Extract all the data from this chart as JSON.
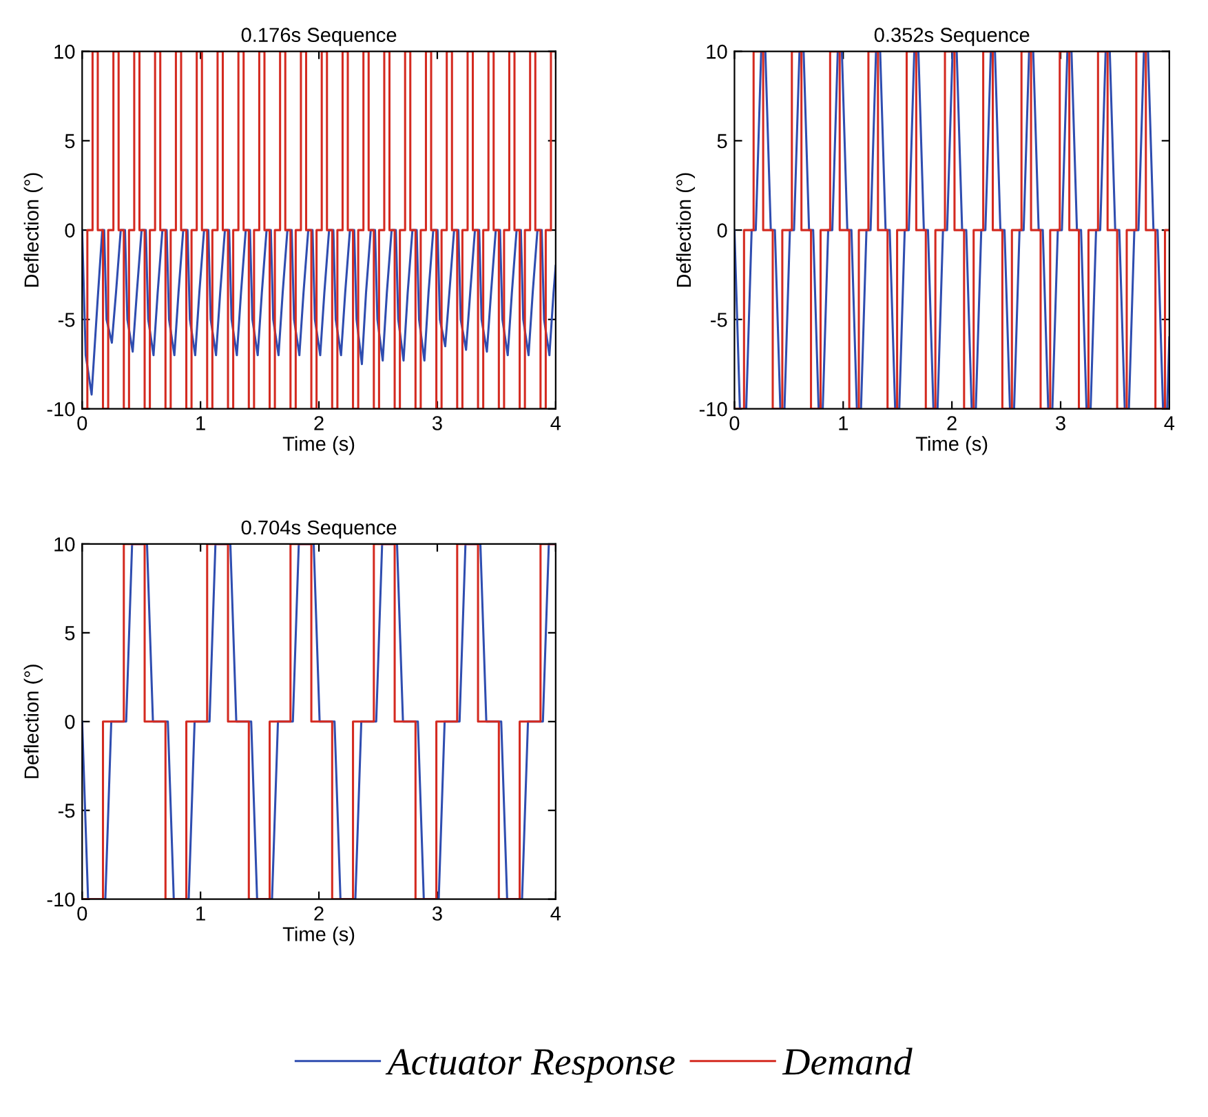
{
  "chart_data": [
    {
      "type": "line",
      "title": "0.176s Sequence",
      "xlabel": "Time (s)",
      "ylabel": "Deflection (°)",
      "xlim": [
        0,
        4
      ],
      "ylim": [
        -10,
        10
      ],
      "xticks": [
        0,
        1,
        2,
        3,
        4
      ],
      "yticks": [
        -10,
        -5,
        0,
        5,
        10
      ],
      "legend": "bottom",
      "series": [
        {
          "name": "Actuator Response",
          "type": "line",
          "color": "#2f4db0",
          "x": [
            0,
            0.03,
            0.08,
            0.13,
            0.17,
            0.186,
            0.206,
            0.251,
            0.286,
            0.326,
            0.362,
            0.382,
            0.427,
            0.462,
            0.502,
            0.538,
            0.558,
            0.603,
            0.638,
            0.678,
            0.714,
            0.734,
            0.779,
            0.814,
            0.854,
            0.89,
            0.91,
            0.955,
            0.99,
            1.03,
            1.066,
            1.086,
            1.131,
            1.166,
            1.206,
            1.242,
            1.262,
            1.307,
            1.342,
            1.382,
            1.418,
            1.438,
            1.483,
            1.518,
            1.558,
            1.594,
            1.614,
            1.659,
            1.694,
            1.734,
            1.77,
            1.79,
            1.835,
            1.87,
            1.91,
            1.946,
            1.966,
            2.011,
            2.046,
            2.086,
            2.122,
            2.142,
            2.187,
            2.222,
            2.262,
            2.298,
            2.318,
            2.363,
            2.398,
            2.438,
            2.474,
            2.494,
            2.539,
            2.574,
            2.614,
            2.65,
            2.67,
            2.715,
            2.75,
            2.79,
            2.826,
            2.846,
            2.891,
            2.926,
            2.966,
            3.002,
            3.022,
            3.067,
            3.102,
            3.142,
            3.178,
            3.198,
            3.243,
            3.278,
            3.318,
            3.354,
            3.374,
            3.419,
            3.454,
            3.494,
            3.53,
            3.55,
            3.595,
            3.63,
            3.67,
            3.706,
            3.726,
            3.771,
            3.806,
            3.846,
            3.882,
            3.902,
            3.947,
            3.982,
            4.0
          ],
          "values": [
            0,
            -7,
            -9.2,
            -4,
            0,
            0,
            -5,
            -6.3,
            -3.5,
            0,
            0,
            -5,
            -6.8,
            -3.5,
            0,
            0,
            -5,
            -7,
            -3.5,
            0,
            0,
            -5,
            -7,
            -3.5,
            0,
            0,
            -5,
            -7,
            -3.5,
            0,
            0,
            -5,
            -7,
            -3.5,
            0,
            0,
            -5,
            -7,
            -3.5,
            0,
            0,
            -5,
            -7,
            -3.5,
            0,
            0,
            -5,
            -7,
            -3.5,
            0,
            0,
            -5,
            -7,
            -3.5,
            0,
            0,
            -5,
            -7,
            -3.5,
            0,
            0,
            -5,
            -7,
            -3.5,
            0,
            0,
            -5,
            -7.5,
            -3.5,
            0,
            0,
            -5,
            -7.3,
            -3.5,
            0,
            0,
            -5,
            -7.3,
            -3.5,
            0,
            0,
            -5,
            -7.3,
            -3.5,
            0,
            0,
            -5,
            -6.5,
            -3.5,
            0,
            0,
            -5,
            -6.7,
            -3.5,
            0,
            0,
            -5,
            -6.8,
            -3.5,
            0,
            0,
            -5,
            -7,
            -3.5,
            0,
            0,
            -5,
            -7,
            -3.5,
            0,
            0,
            -5,
            -7,
            -3.5,
            -2
          ]
        },
        {
          "name": "Demand",
          "type": "step",
          "color": "#d42a20",
          "x": [
            0,
            0.044,
            0.088,
            0.132,
            0.176,
            0.22,
            0.264,
            0.308,
            0.352,
            0.396,
            0.44,
            0.484,
            0.528,
            0.572,
            0.616,
            0.66,
            0.704,
            0.748,
            0.792,
            0.836,
            0.88,
            0.924,
            0.968,
            1.012,
            1.056,
            1.1,
            1.144,
            1.188,
            1.232,
            1.276,
            1.32,
            1.364,
            1.408,
            1.452,
            1.496,
            1.54,
            1.584,
            1.628,
            1.672,
            1.716,
            1.76,
            1.804,
            1.848,
            1.892,
            1.936,
            1.98,
            2.024,
            2.068,
            2.112,
            2.156,
            2.2,
            2.244,
            2.288,
            2.332,
            2.376,
            2.42,
            2.464,
            2.508,
            2.552,
            2.596,
            2.64,
            2.684,
            2.728,
            2.772,
            2.816,
            2.86,
            2.904,
            2.948,
            2.992,
            3.036,
            3.08,
            3.124,
            3.168,
            3.212,
            3.256,
            3.3,
            3.344,
            3.388,
            3.432,
            3.476,
            3.52,
            3.564,
            3.608,
            3.652,
            3.696,
            3.74,
            3.784,
            3.828,
            3.872,
            3.916,
            3.96,
            4.0
          ],
          "values": [
            -10,
            0,
            10,
            0,
            -10,
            0,
            10,
            0,
            -10,
            0,
            10,
            0,
            -10,
            0,
            10,
            0,
            -10,
            0,
            10,
            0,
            -10,
            0,
            10,
            0,
            -10,
            0,
            10,
            0,
            -10,
            0,
            10,
            0,
            -10,
            0,
            10,
            0,
            -10,
            0,
            10,
            0,
            -10,
            0,
            10,
            0,
            -10,
            0,
            10,
            0,
            -10,
            0,
            10,
            0,
            -10,
            0,
            10,
            0,
            -10,
            0,
            10,
            0,
            -10,
            0,
            10,
            0,
            -10,
            0,
            10,
            0,
            -10,
            0,
            10,
            0,
            -10,
            0,
            10,
            0,
            -10,
            0,
            10,
            0,
            -10,
            0,
            10,
            0,
            -10,
            0,
            10,
            0,
            -10,
            0,
            10,
            10
          ]
        }
      ]
    },
    {
      "type": "line",
      "title": "0.352s Sequence",
      "xlabel": "Time (s)",
      "ylabel": "Deflection (°)",
      "xlim": [
        0,
        4
      ],
      "ylim": [
        -10,
        10
      ],
      "xticks": [
        0,
        1,
        2,
        3,
        4
      ],
      "yticks": [
        -10,
        -5,
        0,
        5,
        10
      ],
      "series": [
        {
          "type": "line",
          "color": "#2f4db0",
          "x": [
            0,
            0.05,
            0.108,
            0.158,
            0.196,
            0.246,
            0.284,
            0.334,
            0.372,
            0.422,
            0.46,
            0.51,
            0.548,
            0.598,
            0.636,
            0.686,
            0.724,
            0.774,
            0.812,
            0.862,
            0.9,
            0.95,
            0.988,
            1.038,
            1.076,
            1.126,
            1.164,
            1.214,
            1.252,
            1.302,
            1.34,
            1.39,
            1.428,
            1.478,
            1.516,
            1.566,
            1.604,
            1.654,
            1.692,
            1.742,
            1.78,
            1.83,
            1.868,
            1.918,
            1.956,
            2.006,
            2.044,
            2.094,
            2.132,
            2.182,
            2.22,
            2.27,
            2.308,
            2.358,
            2.396,
            2.446,
            2.484,
            2.534,
            2.572,
            2.622,
            2.66,
            2.71,
            2.748,
            2.798,
            2.836,
            2.886,
            2.924,
            2.974,
            3.012,
            3.062,
            3.1,
            3.15,
            3.188,
            3.238,
            3.276,
            3.326,
            3.364,
            3.414,
            3.452,
            3.502,
            3.54,
            3.59,
            3.628,
            3.678,
            3.716,
            3.766,
            3.804,
            3.854,
            3.892,
            3.942,
            3.98,
            4.0
          ],
          "values": [
            0,
            -10,
            -10,
            0,
            0,
            10,
            10,
            0,
            0,
            -10,
            -10,
            0,
            0,
            10,
            10,
            0,
            0,
            -10,
            -10,
            0,
            0,
            10,
            10,
            0,
            0,
            -10,
            -10,
            0,
            0,
            10,
            10,
            0,
            0,
            -10,
            -10,
            0,
            0,
            10,
            10,
            0,
            0,
            -10,
            -10,
            0,
            0,
            10,
            10,
            0,
            0,
            -10,
            -10,
            0,
            0,
            10,
            10,
            0,
            0,
            -10,
            -10,
            0,
            0,
            10,
            10,
            0,
            0,
            -10,
            -10,
            0,
            0,
            10,
            10,
            0,
            0,
            -10,
            -10,
            0,
            0,
            10,
            10,
            0,
            0,
            -10,
            -10,
            0,
            0,
            10,
            10,
            0,
            0,
            -10,
            -10,
            -6
          ]
        },
        {
          "type": "step",
          "color": "#d42a20",
          "x": [
            0,
            0.088,
            0.176,
            0.264,
            0.352,
            0.44,
            0.528,
            0.616,
            0.704,
            0.792,
            0.88,
            0.968,
            1.056,
            1.144,
            1.232,
            1.32,
            1.408,
            1.496,
            1.584,
            1.672,
            1.76,
            1.848,
            1.936,
            2.024,
            2.112,
            2.2,
            2.288,
            2.376,
            2.464,
            2.552,
            2.64,
            2.728,
            2.816,
            2.904,
            2.992,
            3.08,
            3.168,
            3.256,
            3.344,
            3.432,
            3.52,
            3.608,
            3.696,
            3.784,
            3.872,
            3.96,
            4.0
          ],
          "values": [
            -10,
            0,
            10,
            0,
            -10,
            0,
            10,
            0,
            -10,
            0,
            10,
            0,
            -10,
            0,
            10,
            0,
            -10,
            0,
            10,
            0,
            -10,
            0,
            10,
            0,
            -10,
            0,
            10,
            0,
            -10,
            0,
            10,
            0,
            -10,
            0,
            10,
            0,
            -10,
            0,
            10,
            0,
            -10,
            0,
            10,
            0,
            -10,
            0,
            0
          ]
        }
      ]
    },
    {
      "type": "line",
      "title": "0.704s Sequence",
      "xlabel": "Time (s)",
      "ylabel": "Deflection (°)",
      "xlim": [
        0,
        4
      ],
      "ylim": [
        -10,
        10
      ],
      "xticks": [
        0,
        1,
        2,
        3,
        4
      ],
      "yticks": [
        -10,
        -5,
        0,
        5,
        10
      ],
      "series": [
        {
          "type": "line",
          "color": "#2f4db0",
          "x": [
            0,
            0.05,
            0.196,
            0.246,
            0.372,
            0.422,
            0.548,
            0.598,
            0.724,
            0.774,
            0.9,
            0.95,
            1.076,
            1.126,
            1.252,
            1.302,
            1.428,
            1.478,
            1.604,
            1.654,
            1.78,
            1.83,
            1.956,
            2.006,
            2.132,
            2.182,
            2.308,
            2.358,
            2.484,
            2.534,
            2.66,
            2.71,
            2.836,
            2.886,
            3.012,
            3.062,
            3.188,
            3.238,
            3.364,
            3.414,
            3.54,
            3.59,
            3.716,
            3.766,
            3.892,
            3.942,
            4.0
          ],
          "values": [
            0,
            -10,
            -10,
            0,
            0,
            10,
            10,
            0,
            0,
            -10,
            -10,
            0,
            0,
            10,
            10,
            0,
            0,
            -10,
            -10,
            0,
            0,
            10,
            10,
            0,
            0,
            -10,
            -10,
            0,
            0,
            10,
            10,
            0,
            0,
            -10,
            -10,
            0,
            0,
            10,
            10,
            0,
            0,
            -10,
            -10,
            0,
            0,
            10,
            10
          ]
        },
        {
          "type": "step",
          "color": "#d42a20",
          "x": [
            0,
            0.176,
            0.352,
            0.528,
            0.704,
            0.88,
            1.056,
            1.232,
            1.408,
            1.584,
            1.76,
            1.936,
            2.112,
            2.288,
            2.464,
            2.64,
            2.816,
            2.992,
            3.168,
            3.344,
            3.52,
            3.696,
            3.872,
            4.0
          ],
          "values": [
            -10,
            0,
            10,
            0,
            -10,
            0,
            10,
            0,
            -10,
            0,
            10,
            0,
            -10,
            0,
            10,
            0,
            -10,
            0,
            10,
            0,
            -10,
            0,
            10,
            10
          ]
        }
      ]
    }
  ]
}
